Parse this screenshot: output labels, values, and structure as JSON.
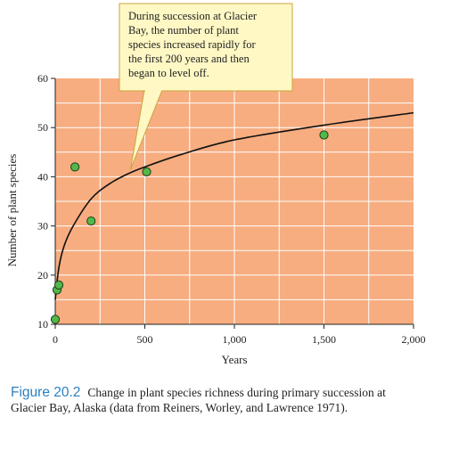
{
  "chart_data": {
    "type": "scatter",
    "xlabel": "Years",
    "ylabel": "Number of plant species",
    "xlim": [
      0,
      2000
    ],
    "ylim": [
      10,
      60
    ],
    "xticks": [
      0,
      500,
      1000,
      1500,
      2000
    ],
    "xtick_labels": [
      "0",
      "500",
      "1,000",
      "1,500",
      "2,000"
    ],
    "yticks": [
      10,
      20,
      30,
      40,
      50,
      60
    ],
    "ytick_labels": [
      "10",
      "20",
      "30",
      "40",
      "50",
      "60"
    ],
    "grid": true,
    "points": [
      {
        "x": 0,
        "y": 11
      },
      {
        "x": 10,
        "y": 17
      },
      {
        "x": 20,
        "y": 18
      },
      {
        "x": 110,
        "y": 42
      },
      {
        "x": 200,
        "y": 31
      },
      {
        "x": 510,
        "y": 41
      },
      {
        "x": 1500,
        "y": 48.5
      }
    ],
    "fitted_curve": [
      {
        "x": 0,
        "y": 15
      },
      {
        "x": 20,
        "y": 21.5
      },
      {
        "x": 50,
        "y": 26
      },
      {
        "x": 100,
        "y": 30
      },
      {
        "x": 200,
        "y": 35.5
      },
      {
        "x": 300,
        "y": 38.5
      },
      {
        "x": 400,
        "y": 40.5
      },
      {
        "x": 500,
        "y": 42
      },
      {
        "x": 700,
        "y": 44.5
      },
      {
        "x": 1000,
        "y": 47.5
      },
      {
        "x": 1500,
        "y": 50.5
      },
      {
        "x": 2000,
        "y": 53
      }
    ],
    "annotation": "During succession at Glacier Bay, the number of plant species increased rapidly for the first 200 years and then began to level off."
  },
  "callout_lines": [
    "During succession at Glacier",
    "Bay, the number of plant",
    "species increased rapidly for",
    "the first 200 years and then",
    "began to level off."
  ],
  "caption": {
    "figure_number": "Figure 20.2",
    "text": "Change in plant species richness during primary succession at Glacier Bay, Alaska (data from Reiners, Worley, and Lawrence 1971)."
  },
  "colors": {
    "plot_background": "#f7ad80",
    "grid": "#ffffff",
    "point_fill": "#52b848",
    "point_stroke": "#1f3d1f",
    "curve": "#111111",
    "callout_fill": "#fff8c4",
    "callout_stroke": "#c9a43a",
    "caption_number": "#2a7fc0"
  }
}
